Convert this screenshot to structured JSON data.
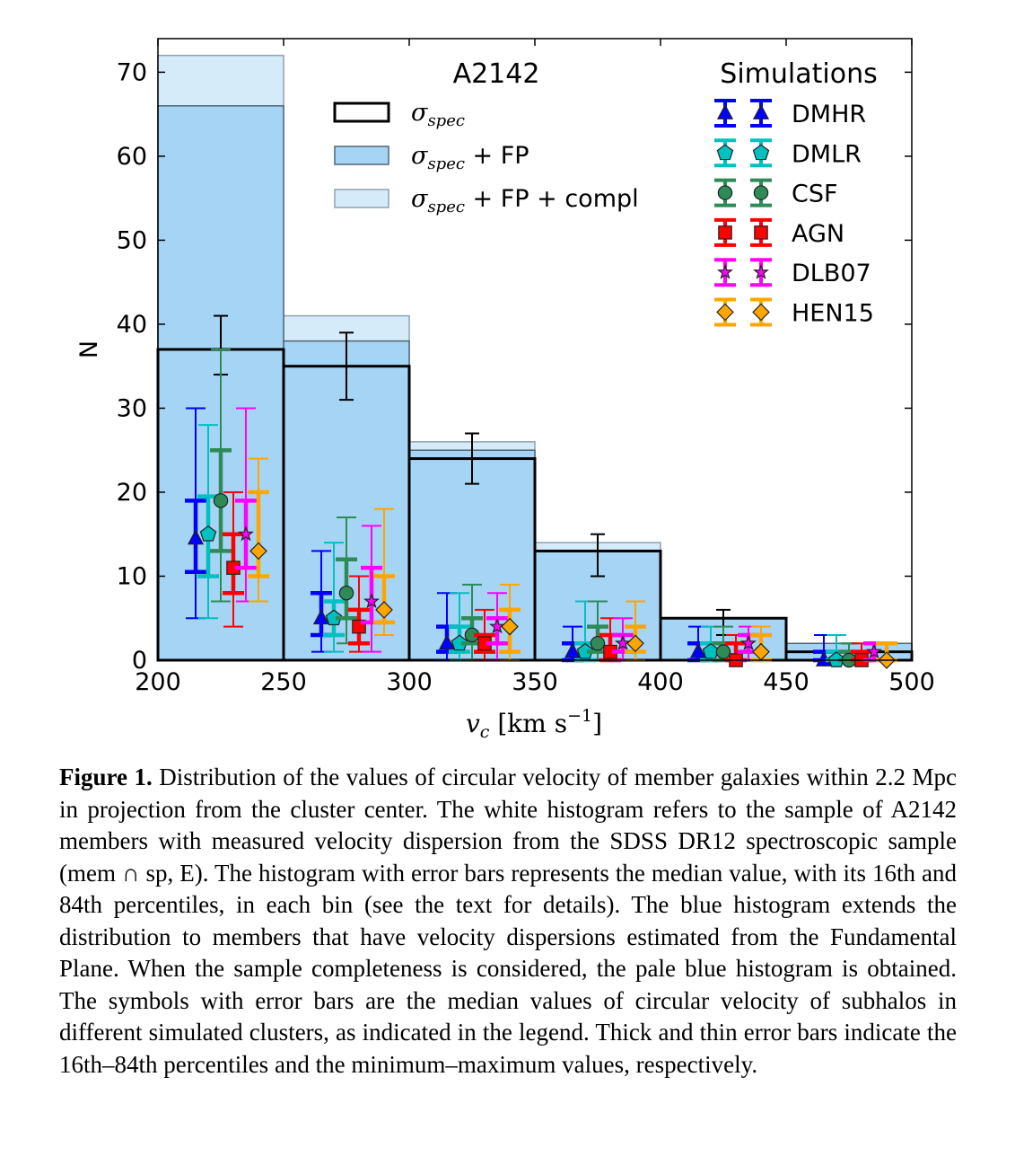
{
  "chart_data": {
    "type": "bar",
    "bins": [
      200,
      250,
      300,
      350,
      400,
      450,
      500
    ],
    "xlim": [
      200,
      500
    ],
    "ylim": [
      0,
      74
    ],
    "xticks": [
      200,
      250,
      300,
      350,
      400,
      450,
      500
    ],
    "yticks": [
      0,
      10,
      20,
      30,
      40,
      50,
      60,
      70
    ],
    "ylabel": "N",
    "xlabel": "v_c [km s^-1]",
    "xlabel_main": "v",
    "xlabel_sub": "c",
    "xlabel_unit": "km s",
    "xlabel_exp": "−1",
    "title": "A2142",
    "histograms": [
      {
        "name": "σspec + FP + compl",
        "name_sym": "σ",
        "name_sub": "spec",
        "name_rest": " + FP + compl",
        "values": [
          72,
          41,
          26,
          14,
          5,
          2
        ],
        "fill": "#d6ebfa",
        "stroke": "#8fa2b0"
      },
      {
        "name": "σspec + FP",
        "name_sym": "σ",
        "name_sub": "spec",
        "name_rest": " + FP",
        "values": [
          66,
          38,
          25,
          13,
          5,
          2
        ],
        "fill": "#a6d4f5",
        "stroke": "#4d6677"
      },
      {
        "name": "σspec",
        "name_sym": "σ",
        "name_sub": "spec",
        "name_rest": "",
        "values": [
          37,
          35,
          24,
          13,
          5,
          1
        ],
        "fill": "none",
        "stroke": "#000000"
      }
    ],
    "spec_errors": {
      "x": [
        225,
        275,
        325,
        375,
        425,
        475
      ],
      "low": [
        34,
        31,
        21,
        10,
        3,
        0
      ],
      "high": [
        41,
        39,
        27,
        15,
        6,
        2
      ]
    },
    "sim_legend_title": "Simulations",
    "series": [
      {
        "name": "DMHR",
        "marker": "triangle",
        "color": "#0000ff",
        "x": [
          215,
          265,
          315,
          365,
          415,
          465
        ],
        "values": [
          14.5,
          5,
          2,
          1,
          1,
          0
        ],
        "p16": [
          10.5,
          3,
          1,
          0,
          0,
          0
        ],
        "p84": [
          19,
          8,
          4,
          2,
          2,
          1
        ],
        "min": [
          5,
          1,
          0,
          0,
          0,
          0
        ],
        "max": [
          30,
          13,
          8,
          4,
          4,
          3
        ]
      },
      {
        "name": "DMLR",
        "marker": "pentagon",
        "color": "#00c0c0",
        "x": [
          220,
          270,
          320,
          370,
          420,
          470
        ],
        "values": [
          15,
          5,
          2,
          1,
          1,
          0
        ],
        "p16": [
          10,
          3,
          1,
          0,
          0,
          0
        ],
        "p84": [
          19.5,
          7,
          4,
          2,
          2,
          1
        ],
        "min": [
          5,
          1,
          0,
          0,
          0,
          0
        ],
        "max": [
          28,
          14,
          8,
          7,
          4,
          3
        ]
      },
      {
        "name": "CSF",
        "marker": "circle",
        "color": "#2e8b57",
        "x": [
          225,
          275,
          325,
          375,
          425,
          475
        ],
        "values": [
          19,
          8,
          3,
          2,
          1,
          0
        ],
        "p16": [
          13,
          5,
          2,
          1,
          0,
          0
        ],
        "p84": [
          25,
          12,
          5,
          4,
          2,
          1
        ],
        "min": [
          7,
          2,
          0,
          0,
          0,
          0
        ],
        "max": [
          37,
          17,
          9,
          7,
          4,
          2
        ]
      },
      {
        "name": "AGN",
        "marker": "square",
        "color": "#ff0000",
        "x": [
          230,
          280,
          330,
          380,
          430,
          480
        ],
        "values": [
          11,
          4,
          2,
          1,
          0,
          0
        ],
        "p16": [
          8,
          2,
          1,
          0,
          0,
          0
        ],
        "p84": [
          15,
          6,
          3,
          3,
          2,
          1
        ],
        "min": [
          4,
          1,
          0,
          0,
          0,
          0
        ],
        "max": [
          20,
          10,
          6,
          5,
          3,
          2
        ]
      },
      {
        "name": "DLB07",
        "marker": "star",
        "color": "#ff00ff",
        "x": [
          235,
          285,
          335,
          385,
          435,
          485
        ],
        "values": [
          15,
          7,
          4,
          2,
          2,
          1
        ],
        "p16": [
          11,
          4.5,
          2,
          1,
          1,
          0
        ],
        "p84": [
          19,
          11,
          5,
          3,
          3,
          2
        ],
        "min": [
          7,
          1,
          0,
          0,
          0,
          0
        ],
        "max": [
          30,
          16,
          8,
          5,
          4,
          2
        ]
      },
      {
        "name": "HEN15",
        "marker": "diamond",
        "color": "#ffa500",
        "x": [
          240,
          290,
          340,
          390,
          440,
          490
        ],
        "values": [
          13,
          6,
          4,
          2,
          1,
          0
        ],
        "p16": [
          10,
          4.5,
          1,
          1,
          0,
          0
        ],
        "p84": [
          20,
          10,
          6,
          4,
          3,
          2
        ],
        "min": [
          7,
          3,
          0,
          0,
          0,
          0
        ],
        "max": [
          24,
          18,
          9,
          7,
          4,
          2
        ]
      }
    ]
  },
  "caption": {
    "label": "Figure 1.",
    "part1": " Distribution of the values of circular velocity of member galaxies within 2.2 Mpc in projection from the cluster center. The white histogram refers to the sample of A2142 members with measured velocity dispersion from the SDSS DR12 spectroscopic sample (mem ",
    "cap_symbol": "∩",
    "part2": " sp, E). The histogram with error bars represents the median value, with its 16th and 84th percentiles, in each bin (see the text for details). The blue histogram extends the distribution to members that have velocity dispersions estimated from the Fundamental Plane. When the sample completeness is considered, the pale blue histogram is obtained. The symbols with error bars are the median values of circular velocity of subhalos in different simulated clusters, as indicated in the legend. Thick and thin error bars indicate the 16th–84th percentiles and the minimum–maximum values, respectively."
  }
}
